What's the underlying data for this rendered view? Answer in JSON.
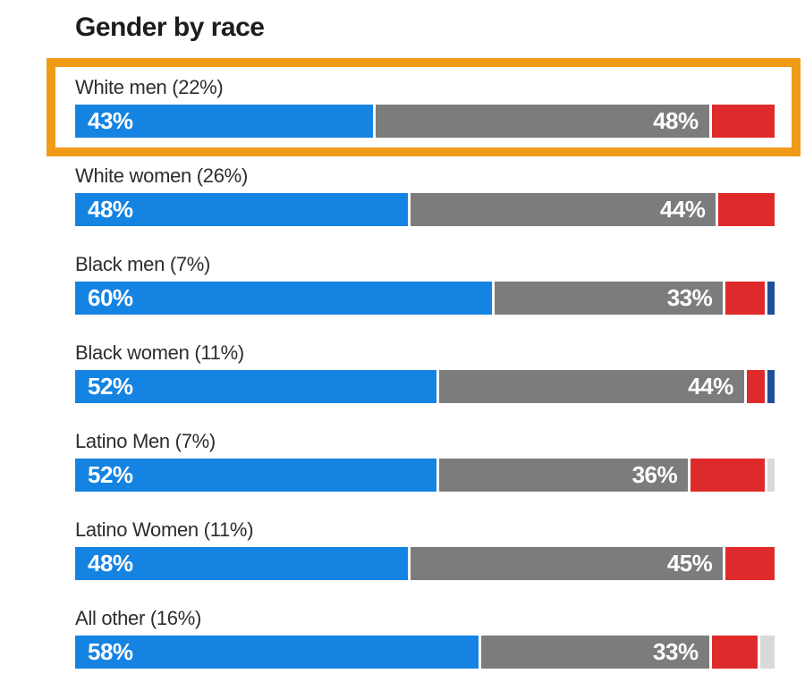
{
  "title": "Gender by race",
  "colors": {
    "blue": "#1483e2",
    "gray": "#7c7c7c",
    "red": "#df2a2b",
    "navy": "#1e4f98",
    "light_gray": "#d9d9d9",
    "highlight_orange": "#f09b18",
    "bar_label_text": "#ffffff",
    "separator": "#ffffff",
    "title_text": "#1d1d1d",
    "row_label_text": "#2d2d2d"
  },
  "highlight": {
    "row_index": 0,
    "border_color": "#f09b18"
  },
  "chart_data": {
    "type": "bar",
    "orientation": "horizontal-stacked",
    "title": "Gender by race",
    "value_range": [
      0,
      100
    ],
    "grid": false,
    "legend": "none",
    "rows": [
      {
        "label": "White men (22%)",
        "highlighted": true,
        "segments": [
          {
            "name": "blue",
            "value": 43,
            "label": "43%",
            "label_align": "left",
            "color": "#1483e2"
          },
          {
            "name": "gray",
            "value": 48,
            "label": "48%",
            "label_align": "right",
            "color": "#7c7c7c"
          },
          {
            "name": "red",
            "value": 9,
            "label": "",
            "label_align": null,
            "color": "#df2a2b"
          }
        ]
      },
      {
        "label": "White women (26%)",
        "highlighted": false,
        "segments": [
          {
            "name": "blue",
            "value": 48,
            "label": "48%",
            "label_align": "left",
            "color": "#1483e2"
          },
          {
            "name": "gray",
            "value": 44,
            "label": "44%",
            "label_align": "right",
            "color": "#7c7c7c"
          },
          {
            "name": "red",
            "value": 8,
            "label": "",
            "label_align": null,
            "color": "#df2a2b"
          }
        ]
      },
      {
        "label": "Black men (7%)",
        "highlighted": false,
        "segments": [
          {
            "name": "blue",
            "value": 60,
            "label": "60%",
            "label_align": "left",
            "color": "#1483e2"
          },
          {
            "name": "gray",
            "value": 33,
            "label": "33%",
            "label_align": "right",
            "color": "#7c7c7c"
          },
          {
            "name": "red",
            "value": 6,
            "label": "",
            "label_align": null,
            "color": "#df2a2b"
          },
          {
            "name": "navy",
            "value": 1,
            "label": "",
            "label_align": null,
            "color": "#1e4f98"
          }
        ]
      },
      {
        "label": "Black women (11%)",
        "highlighted": false,
        "segments": [
          {
            "name": "blue",
            "value": 52,
            "label": "52%",
            "label_align": "left",
            "color": "#1483e2"
          },
          {
            "name": "gray",
            "value": 44,
            "label": "44%",
            "label_align": "right",
            "color": "#7c7c7c"
          },
          {
            "name": "red",
            "value": 3,
            "label": "",
            "label_align": null,
            "color": "#df2a2b"
          },
          {
            "name": "navy",
            "value": 1,
            "label": "",
            "label_align": null,
            "color": "#1e4f98"
          }
        ]
      },
      {
        "label": "Latino Men (7%)",
        "highlighted": false,
        "segments": [
          {
            "name": "blue",
            "value": 52,
            "label": "52%",
            "label_align": "left",
            "color": "#1483e2"
          },
          {
            "name": "gray",
            "value": 36,
            "label": "36%",
            "label_align": "right",
            "color": "#7c7c7c"
          },
          {
            "name": "red",
            "value": 11,
            "label": "",
            "label_align": null,
            "color": "#df2a2b"
          },
          {
            "name": "light-gray",
            "value": 1,
            "label": "",
            "label_align": null,
            "color": "#d9d9d9"
          }
        ]
      },
      {
        "label": "Latino Women (11%)",
        "highlighted": false,
        "segments": [
          {
            "name": "blue",
            "value": 48,
            "label": "48%",
            "label_align": "left",
            "color": "#1483e2"
          },
          {
            "name": "gray",
            "value": 45,
            "label": "45%",
            "label_align": "right",
            "color": "#7c7c7c"
          },
          {
            "name": "red",
            "value": 7,
            "label": "",
            "label_align": null,
            "color": "#df2a2b"
          }
        ]
      },
      {
        "label": "All other (16%)",
        "highlighted": false,
        "segments": [
          {
            "name": "blue",
            "value": 58,
            "label": "58%",
            "label_align": "left",
            "color": "#1483e2"
          },
          {
            "name": "gray",
            "value": 33,
            "label": "33%",
            "label_align": "right",
            "color": "#7c7c7c"
          },
          {
            "name": "red",
            "value": 7,
            "label": "",
            "label_align": null,
            "color": "#df2a2b"
          },
          {
            "name": "light-gray",
            "value": 2,
            "label": "",
            "label_align": null,
            "color": "#d9d9d9"
          }
        ]
      }
    ]
  }
}
